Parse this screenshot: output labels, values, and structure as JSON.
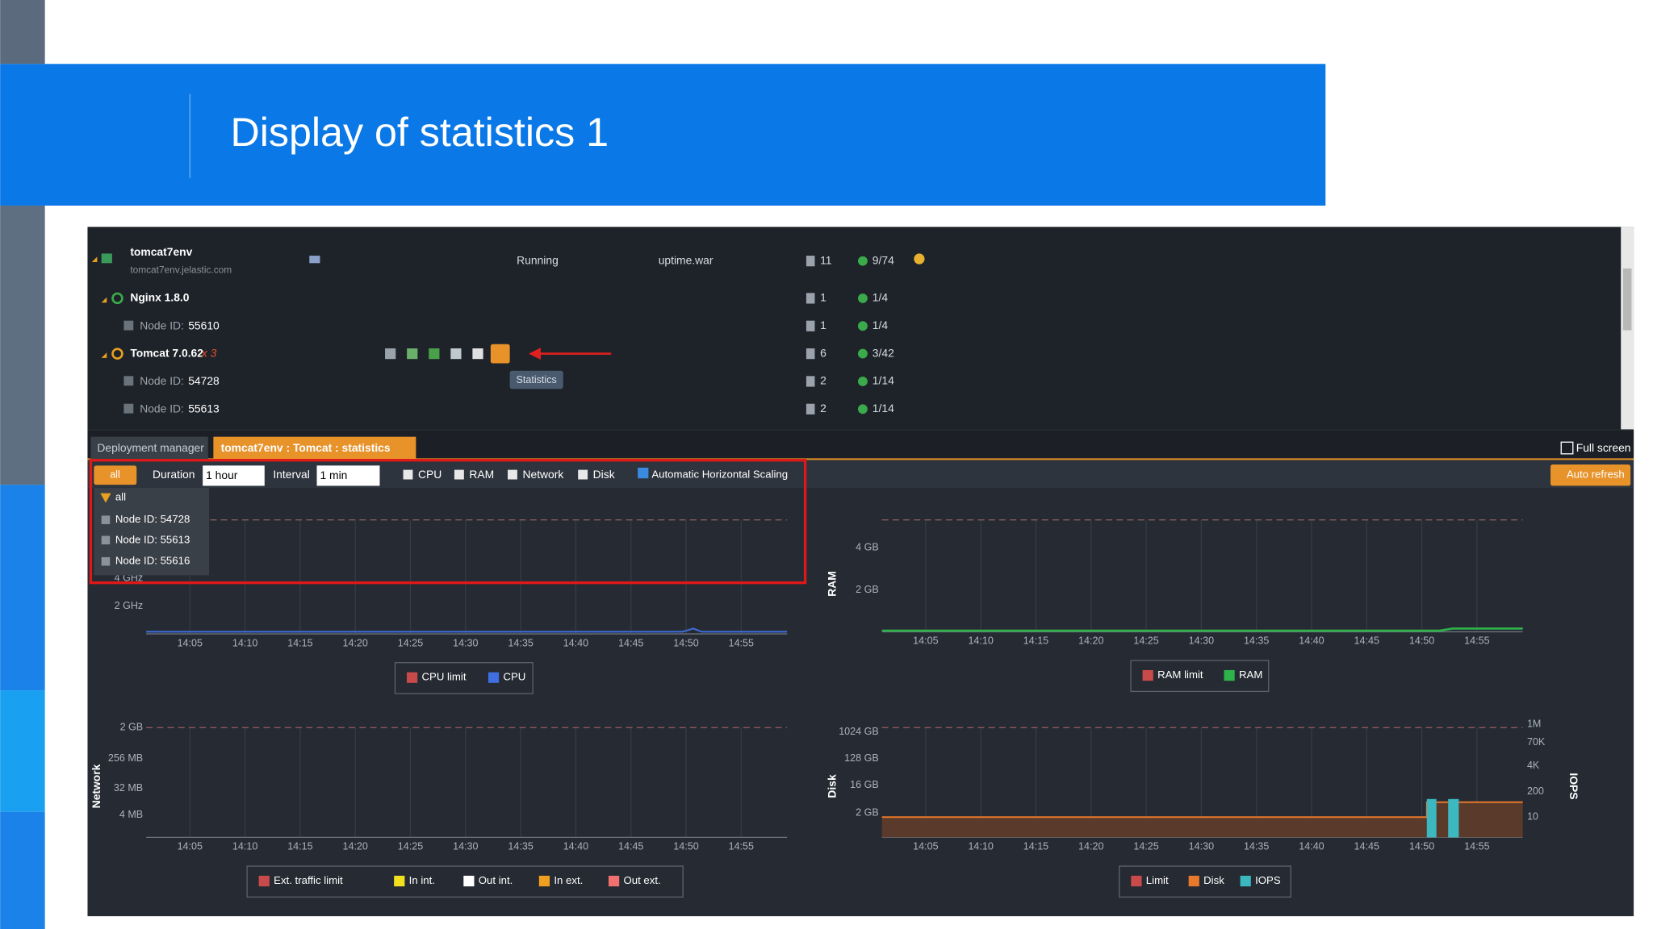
{
  "slide": {
    "title": "Display of statistics 1"
  },
  "env": {
    "name": "tomcat7env",
    "domain": "tomcat7env.jelastic.com",
    "status": "Running",
    "app": "uptime.war",
    "count": "11",
    "cloudlets": "9/74",
    "rows": [
      {
        "label": "Nginx 1.8.0",
        "count": "1",
        "cloudlets": "1/4"
      },
      {
        "label": "Node ID:",
        "id": "55610",
        "count": "1",
        "cloudlets": "1/4"
      },
      {
        "label": "Tomcat 7.0.62",
        "suffix": "x 3",
        "count": "6",
        "cloudlets": "3/42"
      },
      {
        "label": "Node ID:",
        "id": "54728",
        "count": "2",
        "cloudlets": "1/14"
      },
      {
        "label": "Node ID:",
        "id": "55613",
        "count": "2",
        "cloudlets": "1/14"
      }
    ],
    "tooltip": "Statistics"
  },
  "tabs": [
    "Deployment manager",
    "tomcat7env : Tomcat : statistics"
  ],
  "fullscreen": "Full screen",
  "toolbar": {
    "filter": "all",
    "duration_label": "Duration",
    "duration": "1 hour",
    "interval_label": "Interval",
    "interval": "1 min",
    "checks": [
      "CPU",
      "RAM",
      "Network",
      "Disk"
    ],
    "scaling": "Automatic Horizontal Scaling",
    "refresh": "Auto refresh"
  },
  "dropdown": [
    "all",
    "Node ID: 54728",
    "Node ID: 55613",
    "Node ID: 55616"
  ],
  "charts": {
    "xticks": [
      "14:05",
      "14:10",
      "14:15",
      "14:20",
      "14:25",
      "14:30",
      "14:35",
      "14:40",
      "14:45",
      "14:50",
      "14:55"
    ],
    "items": [
      {
        "title": null,
        "yticks": [
          "4 GHz",
          "2 GHz"
        ],
        "legend": [
          {
            "name": "CPU limit",
            "color": "#c94a4a"
          },
          {
            "name": "CPU",
            "color": "#3f6fe0"
          }
        ]
      },
      {
        "title": "RAM",
        "yticks": [
          "4 GB",
          "2 GB"
        ],
        "legend": [
          {
            "name": "RAM limit",
            "color": "#c94a4a"
          },
          {
            "name": "RAM",
            "color": "#2db34a"
          }
        ]
      },
      {
        "title": "Network",
        "yticks": [
          "2 GB",
          "256 MB",
          "32 MB",
          "4 MB"
        ],
        "legend": [
          {
            "name": "Ext. traffic limit",
            "color": "#c94a4a"
          },
          {
            "name": "In int.",
            "color": "#f0e020"
          },
          {
            "name": "Out int.",
            "color": "#ffffff"
          },
          {
            "name": "In ext.",
            "color": "#f0a020"
          },
          {
            "name": "Out ext.",
            "color": "#f07070"
          }
        ]
      },
      {
        "title": "Disk",
        "yticks": [
          "1024 GB",
          "128 GB",
          "16 GB",
          "2 GB"
        ],
        "y2title": "IOPS",
        "y2ticks": [
          "1M",
          "70K",
          "4K",
          "200",
          "10"
        ],
        "legend": [
          {
            "name": "Limit",
            "color": "#c94a4a"
          },
          {
            "name": "Disk",
            "color": "#e8782a"
          },
          {
            "name": "IOPS",
            "color": "#3bb8c0"
          }
        ]
      }
    ]
  }
}
